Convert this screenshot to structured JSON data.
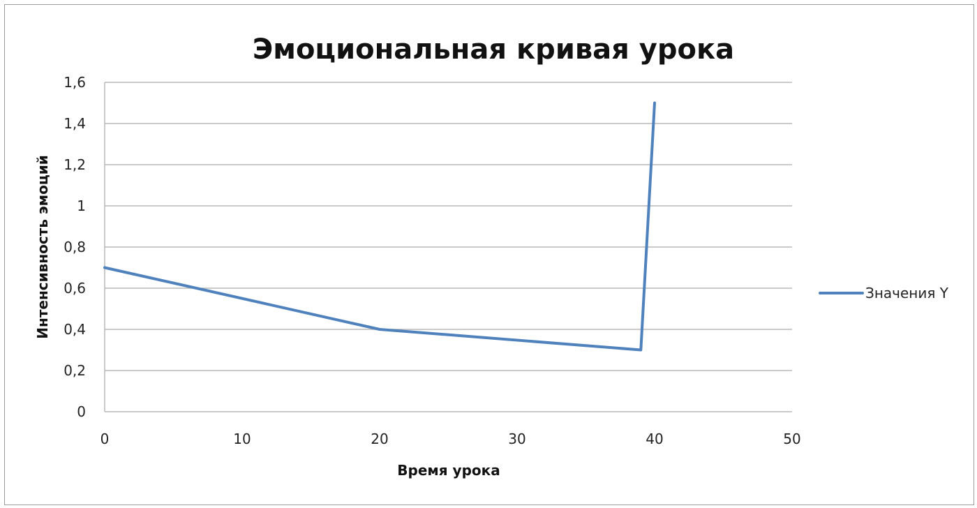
{
  "chart_data": {
    "type": "line",
    "title": "Эмоциональная кривая урока",
    "xlabel": "Время урока",
    "ylabel": "Интенсивность эмоций",
    "xlim": [
      0,
      50
    ],
    "ylim": [
      0,
      1.6
    ],
    "x_ticks": [
      "0",
      "10",
      "20",
      "30",
      "40",
      "50"
    ],
    "y_ticks": [
      "0",
      "0,2",
      "0,4",
      "0,6",
      "0,8",
      "1",
      "1,2",
      "1,4",
      "1,6"
    ],
    "grid": "horizontal",
    "legend_position": "right",
    "series": [
      {
        "name": "Значения Y",
        "color": "#4f81bd",
        "x": [
          0,
          20,
          39,
          40
        ],
        "y": [
          0.7,
          0.4,
          0.3,
          1.5
        ]
      }
    ]
  }
}
